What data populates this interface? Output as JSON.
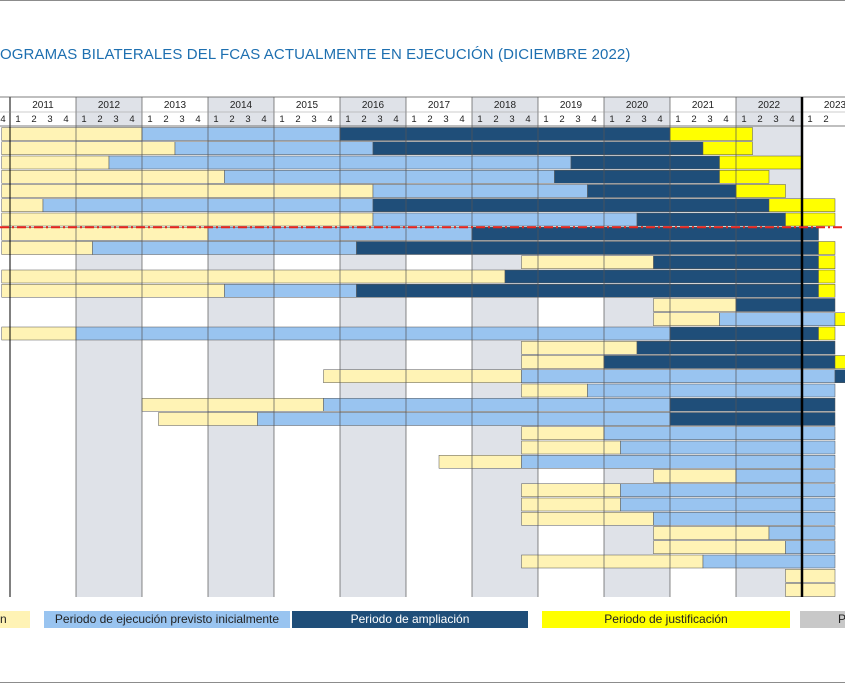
{
  "title": "OGRAMAS BILATERALES DEL FCAS ACTUALMENTE EN EJECUCIÓN (DICIEMBRE 2022)",
  "chart_data": {
    "type": "gantt",
    "years": [
      "2011",
      "2012",
      "2013",
      "2014",
      "2015",
      "2016",
      "2017",
      "2018",
      "2019",
      "2020",
      "2021",
      "2022",
      "2023"
    ],
    "current_year": "2022",
    "quarter_labels": [
      "1",
      "2",
      "3",
      "4"
    ],
    "left_edge_labels": [
      "4"
    ],
    "x_range": [
      2010.875,
      2023.25
    ],
    "current_date_line": 2023.0,
    "threshold_line_after_row": 7,
    "colors": {
      "grid_shade": "#dfe2e8",
      "aprobacion": "#fff3b5",
      "previsto": "#99c4f0",
      "ampliacion": "#1f4e79",
      "justificacion": "#ffff00",
      "otro": "#c8c8c8",
      "current_year": "#ff0000",
      "threshold": "#e8241d",
      "title": "#1d6fb0"
    },
    "legend": [
      {
        "key": "aprobacion",
        "label": "n"
      },
      {
        "key": "previsto",
        "label": "Periodo de ejecución previsto inicialmente"
      },
      {
        "key": "ampliacion",
        "label": "Periodo de ampliación"
      },
      {
        "key": "justificacion",
        "label": "Periodo de justificación"
      },
      {
        "key": "otro",
        "label": "Pe"
      }
    ],
    "rows": [
      {
        "segments": [
          [
            "aprobacion",
            2010.875,
            2013.0
          ],
          [
            "previsto",
            2013.0,
            2016.0
          ],
          [
            "ampliacion",
            2016.0,
            2021.0
          ],
          [
            "justificacion",
            2021.0,
            2022.25
          ]
        ]
      },
      {
        "segments": [
          [
            "aprobacion",
            2010.875,
            2013.5
          ],
          [
            "previsto",
            2013.5,
            2016.5
          ],
          [
            "ampliacion",
            2016.5,
            2021.5
          ],
          [
            "justificacion",
            2021.5,
            2022.25
          ]
        ]
      },
      {
        "segments": [
          [
            "aprobacion",
            2010.875,
            2012.5
          ],
          [
            "previsto",
            2012.5,
            2019.5
          ],
          [
            "ampliacion",
            2019.5,
            2021.75
          ],
          [
            "justificacion",
            2021.75,
            2023.0
          ]
        ]
      },
      {
        "segments": [
          [
            "aprobacion",
            2010.875,
            2014.25
          ],
          [
            "previsto",
            2014.25,
            2019.25
          ],
          [
            "ampliacion",
            2019.25,
            2021.75
          ],
          [
            "justificacion",
            2021.75,
            2022.5
          ]
        ]
      },
      {
        "segments": [
          [
            "aprobacion",
            2010.875,
            2016.5
          ],
          [
            "previsto",
            2016.5,
            2019.75
          ],
          [
            "ampliacion",
            2019.75,
            2022.0
          ],
          [
            "justificacion",
            2022.0,
            2022.75
          ]
        ]
      },
      {
        "segments": [
          [
            "aprobacion",
            2010.875,
            2011.5
          ],
          [
            "previsto",
            2011.5,
            2016.5
          ],
          [
            "ampliacion",
            2016.5,
            2022.5
          ],
          [
            "justificacion",
            2022.5,
            2023.5
          ]
        ]
      },
      {
        "segments": [
          [
            "aprobacion",
            2010.875,
            2016.5
          ],
          [
            "previsto",
            2016.5,
            2020.5
          ],
          [
            "ampliacion",
            2020.5,
            2022.75
          ],
          [
            "justificacion",
            2022.75,
            2023.5
          ]
        ]
      },
      {
        "segments": [
          [
            "aprobacion",
            2010.875,
            2014.0
          ],
          [
            "previsto",
            2014.0,
            2018.0
          ],
          [
            "ampliacion",
            2018.0,
            2023.25
          ]
        ]
      },
      {
        "segments": [
          [
            "aprobacion",
            2010.875,
            2012.25
          ],
          [
            "previsto",
            2012.25,
            2016.25
          ],
          [
            "ampliacion",
            2016.25,
            2023.25
          ],
          [
            "justificacion",
            2023.25,
            2023.5
          ]
        ]
      },
      {
        "segments": [
          [
            "aprobacion",
            2018.75,
            2020.75
          ],
          [
            "ampliacion",
            2020.75,
            2023.25
          ],
          [
            "justificacion",
            2023.25,
            2023.5
          ]
        ]
      },
      {
        "segments": [
          [
            "aprobacion",
            2010.875,
            2018.5
          ],
          [
            "ampliacion",
            2018.5,
            2023.25
          ],
          [
            "justificacion",
            2023.25,
            2023.5
          ]
        ]
      },
      {
        "segments": [
          [
            "aprobacion",
            2010.875,
            2014.25
          ],
          [
            "previsto",
            2014.25,
            2016.25
          ],
          [
            "ampliacion",
            2016.25,
            2023.25
          ],
          [
            "justificacion",
            2023.25,
            2023.5
          ]
        ]
      },
      {
        "segments": [
          [
            "aprobacion",
            2020.75,
            2022.0
          ],
          [
            "ampliacion",
            2022.0,
            2023.5
          ]
        ]
      },
      {
        "segments": [
          [
            "aprobacion",
            2020.75,
            2021.75
          ],
          [
            "previsto",
            2021.75,
            2023.5
          ],
          [
            "justificacion",
            2023.5,
            2023.75
          ]
        ]
      },
      {
        "segments": [
          [
            "aprobacion",
            2010.875,
            2012.0
          ],
          [
            "previsto",
            2012.0,
            2021.0
          ],
          [
            "ampliacion",
            2021.0,
            2023.25
          ],
          [
            "justificacion",
            2023.25,
            2023.5
          ]
        ]
      },
      {
        "segments": [
          [
            "aprobacion",
            2018.75,
            2020.5
          ],
          [
            "ampliacion",
            2020.5,
            2023.5
          ]
        ]
      },
      {
        "segments": [
          [
            "aprobacion",
            2018.75,
            2020.0
          ],
          [
            "ampliacion",
            2020.0,
            2023.5
          ],
          [
            "justificacion",
            2023.5,
            2023.75
          ]
        ]
      },
      {
        "segments": [
          [
            "aprobacion",
            2015.75,
            2018.75
          ],
          [
            "previsto",
            2018.75,
            2023.5
          ],
          [
            "ampliacion",
            2023.5,
            2023.75
          ]
        ]
      },
      {
        "segments": [
          [
            "aprobacion",
            2018.75,
            2019.75
          ],
          [
            "previsto",
            2019.75,
            2023.5
          ]
        ]
      },
      {
        "segments": [
          [
            "aprobacion",
            2013.0,
            2015.75
          ],
          [
            "previsto",
            2015.75,
            2021.0
          ],
          [
            "ampliacion",
            2021.0,
            2023.5
          ]
        ]
      },
      {
        "segments": [
          [
            "aprobacion",
            2013.25,
            2014.75
          ],
          [
            "previsto",
            2014.75,
            2021.0
          ],
          [
            "ampliacion",
            2021.0,
            2023.5
          ]
        ]
      },
      {
        "segments": [
          [
            "aprobacion",
            2018.75,
            2020.0
          ],
          [
            "previsto",
            2020.0,
            2023.5
          ]
        ]
      },
      {
        "segments": [
          [
            "aprobacion",
            2018.75,
            2020.25
          ],
          [
            "previsto",
            2020.25,
            2023.5
          ]
        ]
      },
      {
        "segments": [
          [
            "aprobacion",
            2017.5,
            2018.75
          ],
          [
            "previsto",
            2018.75,
            2023.5
          ]
        ]
      },
      {
        "segments": [
          [
            "aprobacion",
            2020.75,
            2022.0
          ],
          [
            "previsto",
            2022.0,
            2023.5
          ]
        ]
      },
      {
        "segments": [
          [
            "aprobacion",
            2018.75,
            2020.25
          ],
          [
            "previsto",
            2020.25,
            2023.5
          ]
        ]
      },
      {
        "segments": [
          [
            "aprobacion",
            2018.75,
            2020.25
          ],
          [
            "previsto",
            2020.25,
            2023.5
          ]
        ]
      },
      {
        "segments": [
          [
            "aprobacion",
            2018.75,
            2020.75
          ],
          [
            "previsto",
            2020.75,
            2023.5
          ]
        ]
      },
      {
        "segments": [
          [
            "aprobacion",
            2020.75,
            2022.5
          ],
          [
            "previsto",
            2022.5,
            2023.5
          ]
        ]
      },
      {
        "segments": [
          [
            "aprobacion",
            2020.75,
            2022.75
          ],
          [
            "previsto",
            2022.75,
            2023.5
          ]
        ]
      },
      {
        "segments": [
          [
            "aprobacion",
            2018.75,
            2021.5
          ],
          [
            "previsto",
            2021.5,
            2023.5
          ]
        ]
      },
      {
        "segments": [
          [
            "aprobacion",
            2022.75,
            2023.5
          ]
        ]
      },
      {
        "segments": [
          [
            "aprobacion",
            2022.75,
            2023.5
          ]
        ]
      }
    ]
  }
}
